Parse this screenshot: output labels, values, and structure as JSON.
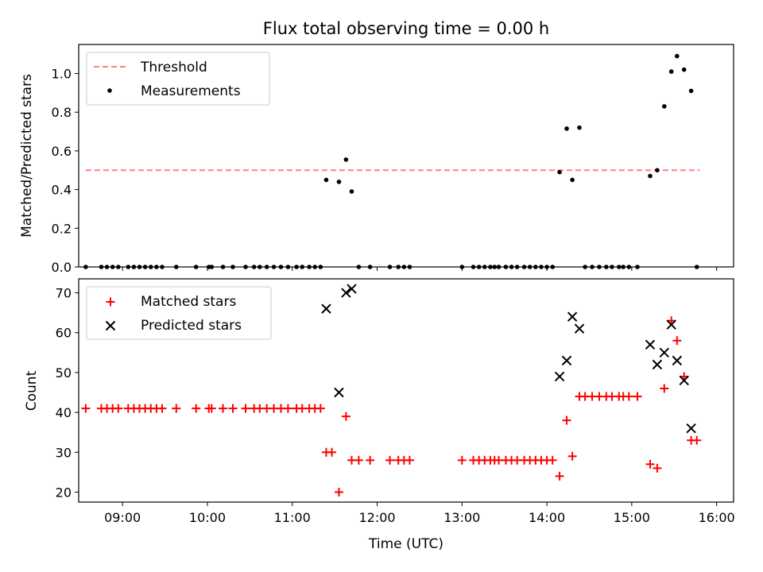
{
  "chart_data": [
    {
      "type": "scatter",
      "title": "Flux total observing time = 0.00 h",
      "xlabel": "",
      "ylabel": "Matched/Predicted stars",
      "xlim": [
        "08:29",
        "16:12"
      ],
      "ylim": [
        0,
        1.15
      ],
      "yticks": [
        "0.0",
        "0.2",
        "0.4",
        "0.6",
        "0.8",
        "1.0"
      ],
      "legend_position": "top-left",
      "threshold": {
        "name": "Threshold",
        "value": 0.5,
        "x_start": "08:34",
        "x_end": "15:48",
        "color": "#ff7f7f"
      },
      "series": [
        {
          "name": "Measurements",
          "color": "#000000",
          "points": [
            [
              "08:34",
              0
            ],
            [
              "08:45",
              0
            ],
            [
              "08:49",
              0
            ],
            [
              "08:53",
              0
            ],
            [
              "08:57",
              0
            ],
            [
              "09:04",
              0
            ],
            [
              "09:08",
              0
            ],
            [
              "09:12",
              0
            ],
            [
              "09:16",
              0
            ],
            [
              "09:20",
              0
            ],
            [
              "09:24",
              0
            ],
            [
              "09:28",
              0
            ],
            [
              "09:38",
              0
            ],
            [
              "09:52",
              0
            ],
            [
              "10:01",
              0
            ],
            [
              "10:03",
              0
            ],
            [
              "10:11",
              0
            ],
            [
              "10:18",
              0
            ],
            [
              "10:27",
              0
            ],
            [
              "10:33",
              0
            ],
            [
              "10:37",
              0
            ],
            [
              "10:42",
              0
            ],
            [
              "10:47",
              0
            ],
            [
              "10:52",
              0
            ],
            [
              "10:57",
              0
            ],
            [
              "11:03",
              0
            ],
            [
              "11:07",
              0
            ],
            [
              "11:12",
              0
            ],
            [
              "11:16",
              0
            ],
            [
              "11:20",
              0
            ],
            [
              "11:24",
              0.45
            ],
            [
              "11:33",
              0.44
            ],
            [
              "11:38",
              0.555
            ],
            [
              "11:42",
              0.39
            ],
            [
              "11:47",
              0
            ],
            [
              "11:55",
              0
            ],
            [
              "12:09",
              0
            ],
            [
              "12:15",
              0
            ],
            [
              "12:19",
              0
            ],
            [
              "12:23",
              0
            ],
            [
              "13:00",
              0
            ],
            [
              "13:08",
              0
            ],
            [
              "13:12",
              0
            ],
            [
              "13:16",
              0
            ],
            [
              "13:20",
              0
            ],
            [
              "13:23",
              0
            ],
            [
              "13:26",
              0
            ],
            [
              "13:31",
              0
            ],
            [
              "13:35",
              0
            ],
            [
              "13:39",
              0
            ],
            [
              "13:44",
              0
            ],
            [
              "13:48",
              0
            ],
            [
              "13:52",
              0
            ],
            [
              "13:56",
              0
            ],
            [
              "14:00",
              0
            ],
            [
              "14:04",
              0
            ],
            [
              "14:09",
              0.49
            ],
            [
              "14:14",
              0.715
            ],
            [
              "14:18",
              0.45
            ],
            [
              "14:23",
              0.72
            ],
            [
              "14:27",
              0
            ],
            [
              "14:32",
              0
            ],
            [
              "14:37",
              0
            ],
            [
              "14:42",
              0
            ],
            [
              "14:46",
              0
            ],
            [
              "14:51",
              0
            ],
            [
              "14:54",
              0
            ],
            [
              "14:58",
              0
            ],
            [
              "15:04",
              0
            ],
            [
              "15:13",
              0.47
            ],
            [
              "15:18",
              0.5
            ],
            [
              "15:23",
              0.83
            ],
            [
              "15:28",
              1.01
            ],
            [
              "15:32",
              1.09
            ],
            [
              "15:37",
              1.02
            ],
            [
              "15:42",
              0.91
            ],
            [
              "15:46",
              0
            ]
          ]
        }
      ]
    },
    {
      "type": "scatter",
      "title": "",
      "xlabel": "Time (UTC)",
      "ylabel": "Count",
      "xlim": [
        "08:29",
        "16:12"
      ],
      "ylim": [
        17.5,
        73.5
      ],
      "xticks": [
        "09:00",
        "10:00",
        "11:00",
        "12:00",
        "13:00",
        "14:00",
        "15:00",
        "16:00"
      ],
      "yticks": [
        "20",
        "30",
        "40",
        "50",
        "60",
        "70"
      ],
      "legend_position": "top-left",
      "series": [
        {
          "name": "Matched stars",
          "marker": "+",
          "color": "#ff0000",
          "points": [
            [
              "08:34",
              41
            ],
            [
              "08:45",
              41
            ],
            [
              "08:49",
              41
            ],
            [
              "08:53",
              41
            ],
            [
              "08:57",
              41
            ],
            [
              "09:04",
              41
            ],
            [
              "09:08",
              41
            ],
            [
              "09:12",
              41
            ],
            [
              "09:16",
              41
            ],
            [
              "09:20",
              41
            ],
            [
              "09:24",
              41
            ],
            [
              "09:28",
              41
            ],
            [
              "09:38",
              41
            ],
            [
              "09:52",
              41
            ],
            [
              "10:01",
              41
            ],
            [
              "10:03",
              41
            ],
            [
              "10:11",
              41
            ],
            [
              "10:18",
              41
            ],
            [
              "10:27",
              41
            ],
            [
              "10:33",
              41
            ],
            [
              "10:37",
              41
            ],
            [
              "10:42",
              41
            ],
            [
              "10:47",
              41
            ],
            [
              "10:52",
              41
            ],
            [
              "10:57",
              41
            ],
            [
              "11:03",
              41
            ],
            [
              "11:07",
              41
            ],
            [
              "11:12",
              41
            ],
            [
              "11:16",
              41
            ],
            [
              "11:20",
              41
            ],
            [
              "11:24",
              30
            ],
            [
              "11:28",
              30
            ],
            [
              "11:33",
              20
            ],
            [
              "11:38",
              39
            ],
            [
              "11:42",
              28
            ],
            [
              "11:47",
              28
            ],
            [
              "11:55",
              28
            ],
            [
              "12:09",
              28
            ],
            [
              "12:15",
              28
            ],
            [
              "12:19",
              28
            ],
            [
              "12:23",
              28
            ],
            [
              "13:00",
              28
            ],
            [
              "13:08",
              28
            ],
            [
              "13:12",
              28
            ],
            [
              "13:16",
              28
            ],
            [
              "13:20",
              28
            ],
            [
              "13:23",
              28
            ],
            [
              "13:26",
              28
            ],
            [
              "13:31",
              28
            ],
            [
              "13:35",
              28
            ],
            [
              "13:39",
              28
            ],
            [
              "13:44",
              28
            ],
            [
              "13:48",
              28
            ],
            [
              "13:52",
              28
            ],
            [
              "13:56",
              28
            ],
            [
              "14:00",
              28
            ],
            [
              "14:04",
              28
            ],
            [
              "14:09",
              24
            ],
            [
              "14:14",
              38
            ],
            [
              "14:18",
              29
            ],
            [
              "14:23",
              44
            ],
            [
              "14:27",
              44
            ],
            [
              "14:32",
              44
            ],
            [
              "14:37",
              44
            ],
            [
              "14:42",
              44
            ],
            [
              "14:46",
              44
            ],
            [
              "14:51",
              44
            ],
            [
              "14:54",
              44
            ],
            [
              "14:58",
              44
            ],
            [
              "15:04",
              44
            ],
            [
              "15:13",
              27
            ],
            [
              "15:18",
              26
            ],
            [
              "15:23",
              46
            ],
            [
              "15:28",
              63
            ],
            [
              "15:32",
              58
            ],
            [
              "15:37",
              49
            ],
            [
              "15:42",
              33
            ],
            [
              "15:46",
              33
            ]
          ]
        },
        {
          "name": "Predicted stars",
          "marker": "x",
          "color": "#000000",
          "points": [
            [
              "11:24",
              66
            ],
            [
              "11:33",
              45
            ],
            [
              "11:38",
              70
            ],
            [
              "11:42",
              71
            ],
            [
              "14:09",
              49
            ],
            [
              "14:14",
              53
            ],
            [
              "14:18",
              64
            ],
            [
              "14:23",
              61
            ],
            [
              "15:13",
              57
            ],
            [
              "15:18",
              52
            ],
            [
              "15:23",
              55
            ],
            [
              "15:28",
              62
            ],
            [
              "15:32",
              53
            ],
            [
              "15:37",
              48
            ],
            [
              "15:42",
              36
            ]
          ]
        }
      ]
    }
  ]
}
